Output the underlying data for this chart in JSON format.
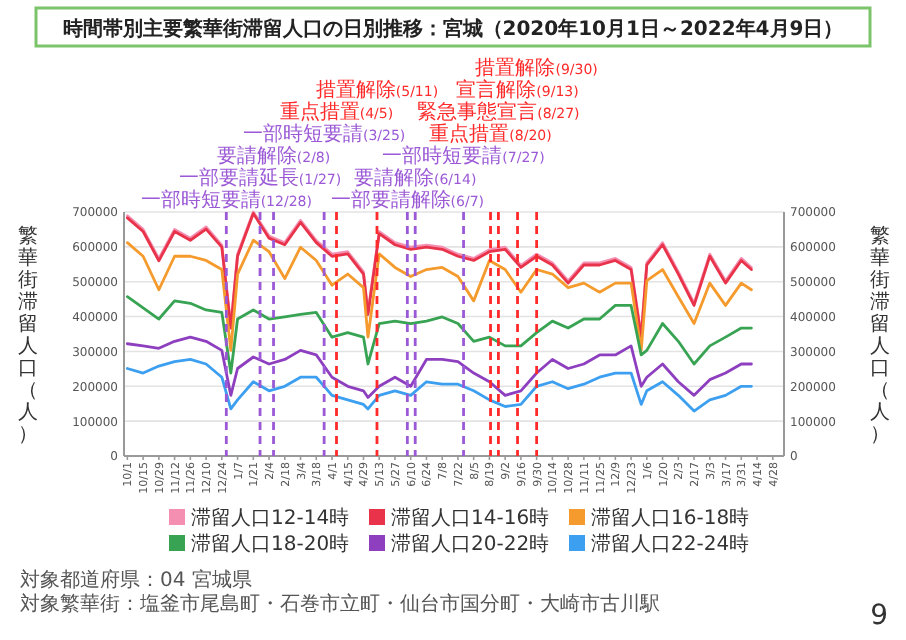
{
  "chart_data": {
    "type": "line",
    "title": "時間帯別主要繁華街滞留人口の日別推移：宮城（2020年10月1日～2022年4月9日）",
    "ylabel": "繁華街滞留人口（人）",
    "y2label": "繁華街滞留人口（人）",
    "x": [
      "2020-10-01",
      "2020-10-15",
      "2020-10-29",
      "2020-11-12",
      "2020-11-26",
      "2020-12-10",
      "2020-12-24",
      "2021-01-01",
      "2021-01-07",
      "2021-01-21",
      "2021-02-04",
      "2021-02-18",
      "2021-03-04",
      "2021-03-18",
      "2021-04-01",
      "2021-04-15",
      "2021-04-29",
      "2021-05-03",
      "2021-05-13",
      "2021-05-27",
      "2021-06-10",
      "2021-06-24",
      "2021-07-08",
      "2021-07-22",
      "2021-08-05",
      "2021-08-19",
      "2021-09-02",
      "2021-09-16",
      "2021-09-30",
      "2021-10-14",
      "2021-10-28",
      "2021-11-11",
      "2021-11-25",
      "2021-12-09",
      "2021-12-23",
      "2022-01-01",
      "2022-01-06",
      "2022-01-20",
      "2022-02-03",
      "2022-02-17",
      "2022-03-03",
      "2022-03-17",
      "2022-03-31",
      "2022-04-09"
    ],
    "series": [
      {
        "name": "滞留人口12-14時",
        "color": "#f48fb1",
        "values": [
          689000,
          650000,
          566000,
          650000,
          625000,
          657000,
          605000,
          373000,
          579000,
          700000,
          631000,
          612000,
          676000,
          618000,
          579000,
          586000,
          528000,
          412000,
          644000,
          612000,
          599000,
          605000,
          599000,
          579000,
          567000,
          592000,
          599000,
          547000,
          579000,
          554000,
          502000,
          554000,
          554000,
          567000,
          541000,
          346000,
          554000,
          612000,
          528000,
          438000,
          579000,
          502000,
          567000,
          541000
        ]
      },
      {
        "name": "滞留人口14-16時",
        "color": "#e8334a",
        "values": [
          683000,
          644000,
          560000,
          644000,
          619000,
          651000,
          599000,
          367000,
          573000,
          696000,
          625000,
          606000,
          670000,
          612000,
          573000,
          580000,
          522000,
          406000,
          638000,
          606000,
          593000,
          599000,
          593000,
          573000,
          561000,
          586000,
          593000,
          541000,
          573000,
          548000,
          496000,
          548000,
          548000,
          561000,
          535000,
          340000,
          548000,
          606000,
          522000,
          432000,
          573000,
          496000,
          561000,
          535000
        ]
      },
      {
        "name": "滞留人口16-18時",
        "color": "#f59a2c",
        "values": [
          612000,
          573000,
          477000,
          573000,
          573000,
          561000,
          535000,
          303000,
          522000,
          619000,
          586000,
          509000,
          599000,
          561000,
          490000,
          522000,
          483000,
          341000,
          580000,
          541000,
          515000,
          535000,
          541000,
          515000,
          445000,
          561000,
          535000,
          470000,
          535000,
          522000,
          483000,
          496000,
          470000,
          496000,
          496000,
          303000,
          503000,
          535000,
          457000,
          380000,
          496000,
          432000,
          496000,
          477000
        ]
      },
      {
        "name": "滞留人口18-20時",
        "color": "#37a353",
        "values": [
          457000,
          425000,
          393000,
          445000,
          438000,
          419000,
          412000,
          238000,
          393000,
          419000,
          393000,
          399000,
          406000,
          412000,
          341000,
          354000,
          341000,
          264000,
          380000,
          387000,
          380000,
          387000,
          399000,
          380000,
          329000,
          341000,
          316000,
          316000,
          354000,
          387000,
          367000,
          393000,
          393000,
          432000,
          432000,
          290000,
          303000,
          380000,
          329000,
          264000,
          316000,
          341000,
          367000,
          367000
        ]
      },
      {
        "name": "滞留人口20-22時",
        "color": "#8e3fbf",
        "values": [
          322000,
          316000,
          309000,
          329000,
          341000,
          329000,
          303000,
          174000,
          251000,
          284000,
          264000,
          277000,
          303000,
          290000,
          226000,
          200000,
          187000,
          168000,
          200000,
          226000,
          200000,
          277000,
          277000,
          271000,
          238000,
          213000,
          174000,
          187000,
          238000,
          277000,
          251000,
          264000,
          290000,
          290000,
          316000,
          200000,
          226000,
          264000,
          213000,
          174000,
          219000,
          238000,
          264000,
          264000
        ]
      },
      {
        "name": "滞留人口22-24時",
        "color": "#3d9ff0",
        "values": [
          251000,
          238000,
          258000,
          271000,
          277000,
          264000,
          226000,
          135000,
          161000,
          213000,
          187000,
          200000,
          226000,
          226000,
          174000,
          161000,
          148000,
          135000,
          174000,
          187000,
          174000,
          213000,
          206000,
          206000,
          187000,
          161000,
          142000,
          148000,
          200000,
          213000,
          193000,
          206000,
          226000,
          238000,
          238000,
          148000,
          187000,
          213000,
          174000,
          129000,
          161000,
          174000,
          200000,
          200000
        ]
      }
    ],
    "xlim": [
      "2020-09-28",
      "2022-05-08"
    ],
    "xticks": [
      {
        "value": "2020-10-01",
        "label": "10/1"
      },
      {
        "value": "2020-10-15",
        "label": "10/15"
      },
      {
        "value": "2020-10-29",
        "label": "10/29"
      },
      {
        "value": "2020-11-12",
        "label": "11/12"
      },
      {
        "value": "2020-11-26",
        "label": "11/26"
      },
      {
        "value": "2020-12-10",
        "label": "12/10"
      },
      {
        "value": "2020-12-24",
        "label": "12/24"
      },
      {
        "value": "2021-01-07",
        "label": "1/7"
      },
      {
        "value": "2021-01-21",
        "label": "1/21"
      },
      {
        "value": "2021-02-04",
        "label": "2/4"
      },
      {
        "value": "2021-02-18",
        "label": "2/18"
      },
      {
        "value": "2021-03-04",
        "label": "3/4"
      },
      {
        "value": "2021-03-18",
        "label": "3/18"
      },
      {
        "value": "2021-04-01",
        "label": "4/1"
      },
      {
        "value": "2021-04-15",
        "label": "4/15"
      },
      {
        "value": "2021-04-29",
        "label": "4/29"
      },
      {
        "value": "2021-05-13",
        "label": "5/13"
      },
      {
        "value": "2021-05-27",
        "label": "5/27"
      },
      {
        "value": "2021-06-10",
        "label": "6/10"
      },
      {
        "value": "2021-06-24",
        "label": "6/24"
      },
      {
        "value": "2021-07-08",
        "label": "7/8"
      },
      {
        "value": "2021-07-22",
        "label": "7/22"
      },
      {
        "value": "2021-08-05",
        "label": "8/5"
      },
      {
        "value": "2021-08-19",
        "label": "8/19"
      },
      {
        "value": "2021-09-02",
        "label": "9/2"
      },
      {
        "value": "2021-09-16",
        "label": "9/16"
      },
      {
        "value": "2021-09-30",
        "label": "9/30"
      },
      {
        "value": "2021-10-14",
        "label": "10/14"
      },
      {
        "value": "2021-10-28",
        "label": "10/28"
      },
      {
        "value": "2021-11-11",
        "label": "11/11"
      },
      {
        "value": "2021-11-25",
        "label": "11/25"
      },
      {
        "value": "2021-12-09",
        "label": "12/9"
      },
      {
        "value": "2021-12-23",
        "label": "12/23"
      },
      {
        "value": "2022-01-06",
        "label": "1/6"
      },
      {
        "value": "2022-01-20",
        "label": "1/20"
      },
      {
        "value": "2022-02-03",
        "label": "2/3"
      },
      {
        "value": "2022-02-17",
        "label": "2/17"
      },
      {
        "value": "2022-03-03",
        "label": "3/3"
      },
      {
        "value": "2022-03-17",
        "label": "3/17"
      },
      {
        "value": "2022-03-31",
        "label": "3/31"
      },
      {
        "value": "2022-04-14",
        "label": "4/14"
      },
      {
        "value": "2022-04-28",
        "label": "4/28"
      }
    ],
    "ylim": [
      0,
      700000
    ],
    "yticks": [
      0,
      100000,
      200000,
      300000,
      400000,
      500000,
      600000,
      700000
    ],
    "y2lim": [
      0,
      700000
    ],
    "y2ticks": [
      0,
      100000,
      200000,
      300000,
      400000,
      500000,
      600000,
      700000
    ],
    "grid": "y",
    "legend": "bottom",
    "ref_lines": [
      {
        "axis": "x",
        "value": "2020-12-28",
        "label": "一部時短要請(12/28)",
        "color": "#9b59d6",
        "line_style": "dashed"
      },
      {
        "axis": "x",
        "value": "2021-01-27",
        "label": "一部要請延長(1/27)",
        "color": "#9b59d6",
        "line_style": "dashed"
      },
      {
        "axis": "x",
        "value": "2021-02-08",
        "label": "要請解除(2/8)",
        "color": "#9b59d6",
        "line_style": "dashed"
      },
      {
        "axis": "x",
        "value": "2021-03-25",
        "label": "一部時短要請(3/25)",
        "color": "#9b59d6",
        "line_style": "dashed"
      },
      {
        "axis": "x",
        "value": "2021-04-05",
        "label": "重点措置(4/5)",
        "color": "#ff2a2a",
        "line_style": "dashed"
      },
      {
        "axis": "x",
        "value": "2021-05-11",
        "label": "措置解除(5/11)",
        "color": "#ff2a2a",
        "line_style": "dashed"
      },
      {
        "axis": "x",
        "value": "2021-06-07",
        "label": "一部要請解除(6/7)",
        "color": "#9b59d6",
        "line_style": "dashed"
      },
      {
        "axis": "x",
        "value": "2021-06-14",
        "label": "要請解除(6/14)",
        "color": "#9b59d6",
        "line_style": "dashed"
      },
      {
        "axis": "x",
        "value": "2021-07-27",
        "label": "一部時短要請(7/27)",
        "color": "#9b59d6",
        "line_style": "dashed"
      },
      {
        "axis": "x",
        "value": "2021-08-20",
        "label": "重点措置(8/20)",
        "color": "#ff2a2a",
        "line_style": "dashed"
      },
      {
        "axis": "x",
        "value": "2021-08-27",
        "label": "緊急事態宣言(8/27)",
        "color": "#ff2a2a",
        "line_style": "dashed"
      },
      {
        "axis": "x",
        "value": "2021-09-13",
        "label": "宣言解除(9/13)",
        "color": "#ff2a2a",
        "line_style": "dashed"
      },
      {
        "axis": "x",
        "value": "2021-09-30",
        "label": "措置解除(9/30)",
        "color": "#ff2a2a",
        "line_style": "dashed"
      }
    ],
    "annotations": [
      "対象都道府県：04 宮城県",
      "対象繁華街：塩釜市尾島町・石巻市立町・仙台市国分町・大崎市古川駅",
      "9"
    ]
  }
}
